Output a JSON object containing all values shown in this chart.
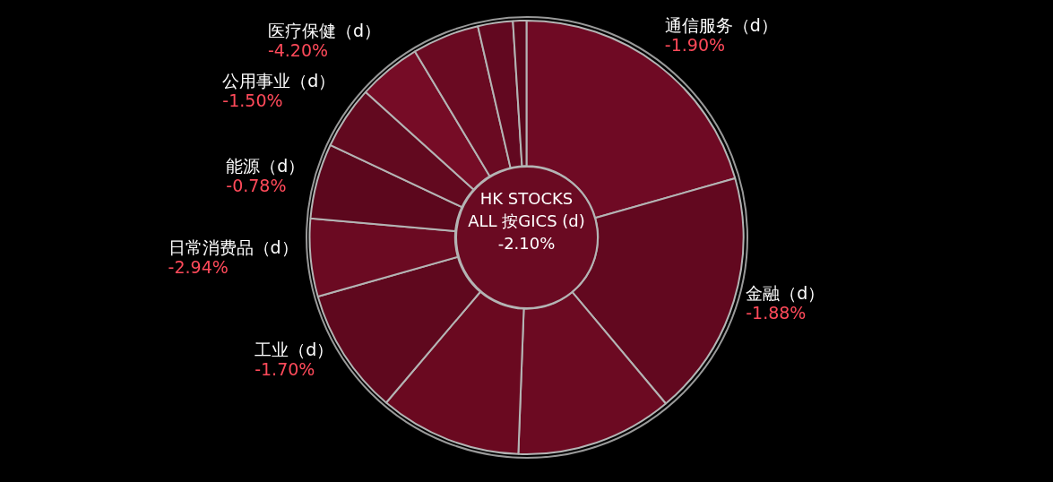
{
  "chart_data": {
    "type": "donut",
    "title": "HK STOCKS ALL 按GICS (d)",
    "annotations": [
      "-2.10%",
      {
        "text": "-1.90%",
        "x": "通信服务（d）"
      },
      {
        "text": "-1.88%",
        "x": "金融（d）"
      },
      {
        "text": "-1.70%",
        "x": "工业（d）"
      },
      {
        "text": "-2.94%",
        "x": "日常消费品（d）"
      },
      {
        "text": "-0.78%",
        "x": "能源（d）"
      },
      {
        "text": "-1.50%",
        "x": "公用事业（d）"
      },
      {
        "text": "-4.20%",
        "x": "医疗保健（d）"
      }
    ],
    "categories": [
      "通信服务（d）",
      "金融（d）",
      null,
      null,
      "工业（d）",
      "日常消费品（d）",
      "能源（d）",
      "公用事业（d）",
      "医疗保健（d）",
      null,
      null,
      null
    ],
    "values": [
      20.6,
      18.3,
      11.7,
      10.6,
      9.4,
      5.8,
      5.6,
      4.7,
      4.7,
      5.0,
      2.6,
      1.0
    ],
    "colors": [
      "#6f0a24",
      "#62081f",
      "#6c0a22",
      "#6a0920",
      "#5f081e",
      "#6b0a22",
      "#5c071d",
      "#62091f",
      "#760c26",
      "#6a0a22",
      "#620820",
      "#5a071c"
    ],
    "legend": false
  }
}
